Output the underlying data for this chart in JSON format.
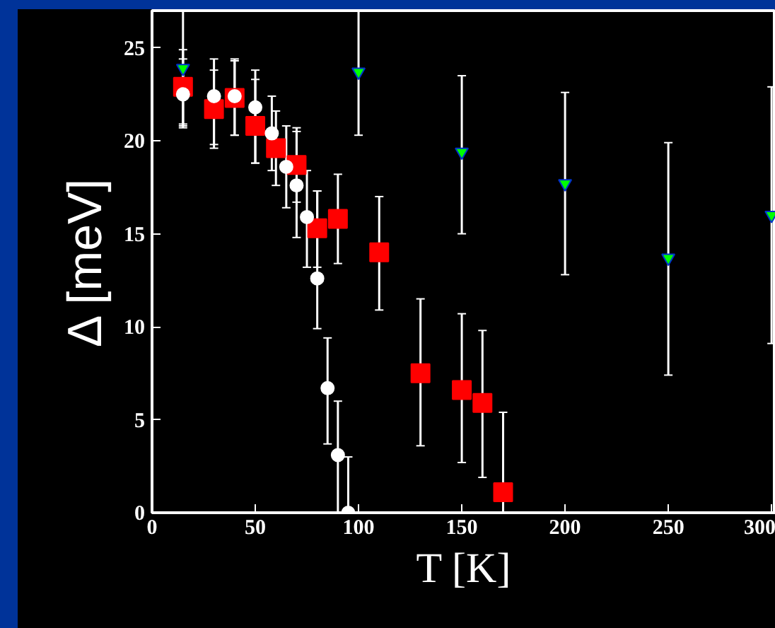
{
  "chart_data": {
    "type": "scatter",
    "xlabel": "T [K]",
    "ylabel": "Δ [meV]",
    "xlim": [
      0,
      302
    ],
    "ylim": [
      0,
      27
    ],
    "xticks": [
      0,
      50,
      100,
      150,
      200,
      250,
      300
    ],
    "yticks": [
      0,
      5,
      10,
      15,
      20,
      25
    ],
    "grid": false,
    "series": [
      {
        "color": "#ffffff",
        "marker": "circle",
        "x": [
          15,
          30,
          40,
          50,
          58,
          65,
          70,
          75,
          80,
          85,
          90,
          95
        ],
        "values": [
          22.5,
          22.4,
          22.4,
          21.8,
          20.4,
          18.6,
          17.6,
          15.9,
          12.6,
          6.7,
          3.1,
          0
        ],
        "errors": [
          [
            20.7,
            24.4
          ],
          [
            19.6,
            24.4
          ],
          [
            20.3,
            24.4
          ],
          [
            18.8,
            23.8
          ],
          [
            18.4,
            22.4
          ],
          [
            16.4,
            20.8
          ],
          [
            14.8,
            20.5
          ],
          [
            13.2,
            18.4
          ],
          [
            9.9,
            17.3
          ],
          [
            3.7,
            9.4
          ],
          [
            0,
            6.0
          ],
          [
            0,
            3.0
          ]
        ]
      },
      {
        "color": "#ff0000",
        "marker": "square",
        "x": [
          15,
          30,
          40,
          50,
          60,
          70,
          80,
          90,
          110,
          130,
          150,
          160,
          170
        ],
        "values": [
          22.9,
          21.7,
          22.3,
          20.8,
          19.6,
          18.7,
          15.3,
          15.8,
          14.0,
          7.5,
          6.6,
          5.9,
          1.1
        ],
        "errors": [
          [
            20.9,
            24.9
          ],
          [
            19.8,
            23.8
          ],
          [
            20.3,
            24.3
          ],
          [
            18.8,
            23.3
          ],
          [
            17.6,
            21.6
          ],
          [
            16.7,
            20.7
          ],
          [
            13.2,
            17.3
          ],
          [
            13.4,
            18.2
          ],
          [
            10.9,
            17.0
          ],
          [
            3.6,
            11.5
          ],
          [
            2.7,
            10.7
          ],
          [
            1.9,
            9.8
          ],
          [
            0,
            5.4
          ]
        ]
      },
      {
        "color": "#00ff00",
        "marker": "triangle",
        "x": [
          15,
          100,
          150,
          200,
          250,
          300
        ],
        "values": [
          23.9,
          23.7,
          19.4,
          17.7,
          13.7,
          16.0
        ],
        "errors": [
          [
            20.8,
            27
          ],
          [
            20.3,
            27
          ],
          [
            15.0,
            23.5
          ],
          [
            12.8,
            22.6
          ],
          [
            7.4,
            19.9
          ],
          [
            9.1,
            22.9
          ]
        ]
      }
    ]
  }
}
